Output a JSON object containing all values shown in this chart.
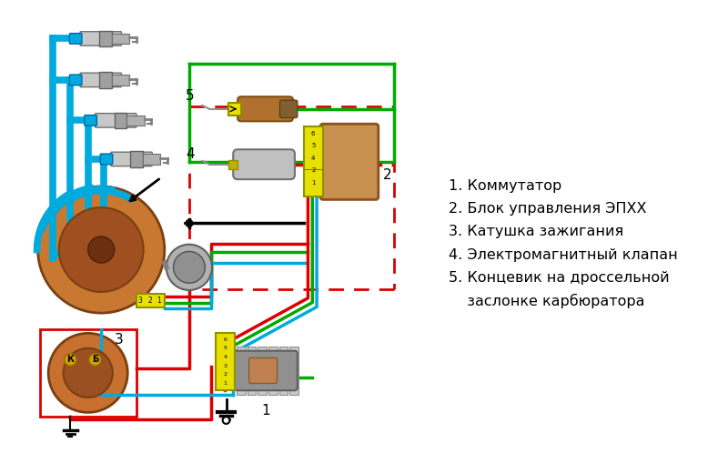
{
  "bg_color": "#ffffff",
  "cyan": "#00aadd",
  "red": "#dd0000",
  "green": "#00aa00",
  "black": "#000000",
  "yellow": "#e8e000",
  "gray": "#b0b0b0",
  "brown": "#c07840",
  "dark_brown": "#8b4513",
  "dist_fill": "#c87830",
  "dist_inner": "#a05020",
  "coil_fill": "#c87030",
  "comm_fill": "#909090",
  "legend": [
    "1. Коммутатор",
    "2. Блок управления ЭПХХ",
    "3. Катушка зажигания",
    "4. Электромагнитный клапан",
    "5. Концевик на дроссельной",
    "    заслонке карбюратора"
  ]
}
